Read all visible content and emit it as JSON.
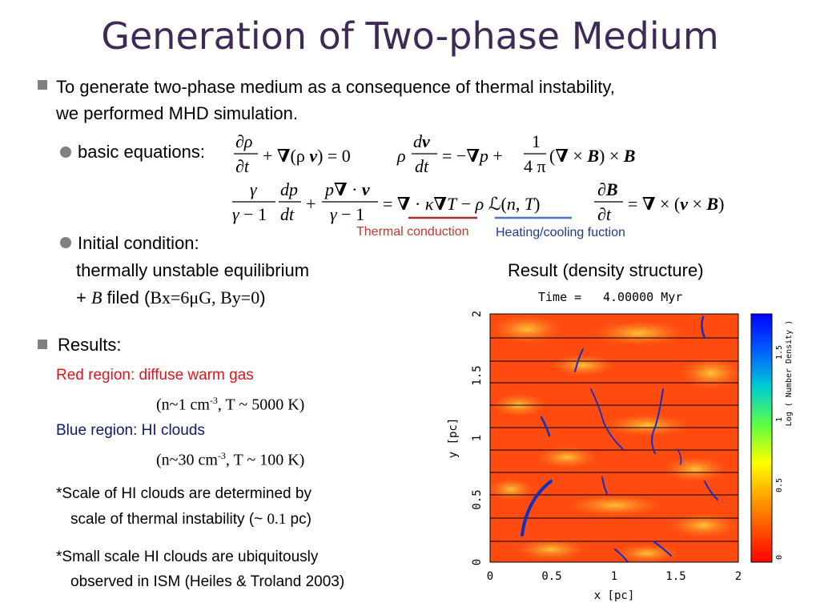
{
  "slide": {
    "title": "Generation of Two-phase Medium",
    "intro_line1": "To generate two-phase medium as a consequence of thermal instability,",
    "intro_line2": "we performed MHD simulation.",
    "basic_equations_label": "basic equations:",
    "thermal_conduction_label": "Thermal conduction",
    "heating_cooling_label": "Heating/cooling fuction",
    "initial_condition_label": "Initial condition:",
    "initial_condition_line1": "thermally unstable equilibrium",
    "initial_condition_plus": "+ ",
    "initial_condition_B": "B",
    "initial_condition_filed": " filed (",
    "initial_condition_values": "Bx=6μG, By=0",
    "initial_condition_close": ")",
    "results_label": "Results:",
    "red_region_label": "Red region: diffuse warm gas",
    "red_region_params_a": "(n~1 cm",
    "red_region_params_sup": "-3",
    "red_region_params_b": ", T ~ 5000 K)",
    "blue_region_label": "Blue region: HI clouds",
    "blue_region_params_a": "(n~30 cm",
    "blue_region_params_sup": "-3",
    "blue_region_params_b": ", T ~ 100 K)",
    "note1_line1": "*Scale of HI clouds are determined by",
    "note1_line2_a": "scale of thermal instability (~ ",
    "note1_line2_val": "0.1",
    "note1_line2_b": " pc)",
    "note2_line1": "*Small scale HI clouds are ubiquitously",
    "note2_line2": "observed in ISM (Heiles & Troland 2003)"
  },
  "figure": {
    "caption": "Result (density structure)",
    "time_label": "Time =",
    "time_value": "4.00000 Myr",
    "xlabel": "x [pc]",
    "ylabel": "y [pc]",
    "x_ticks": [
      "0",
      "0.5",
      "1",
      "1.5",
      "2"
    ],
    "y_ticks": [
      "0",
      "0.5",
      "1",
      "1.5",
      "2"
    ],
    "colorbar_label": "Log ( Number Density )",
    "colorbar_ticks": [
      "0",
      "0.5",
      "1",
      "1.5"
    ],
    "colors": {
      "warm": "#ff4a10",
      "cloud": "#1030c0",
      "bar_bottom": "#ff0000",
      "bar_top": "#0000ff"
    }
  }
}
